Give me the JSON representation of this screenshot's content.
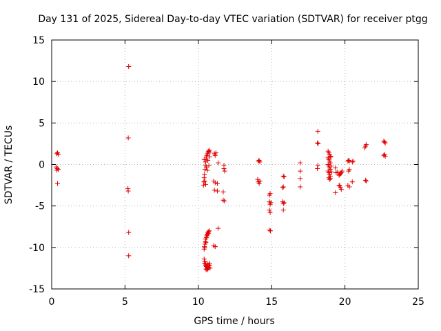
{
  "chart_data": {
    "type": "scatter",
    "title": "Day 131 of 2025, Sidereal Day-to-day VTEC variation (SDTVAR) for receiver ptgg",
    "xlabel": "GPS time / hours",
    "ylabel": "SDTVAR / TECUs",
    "xlim": [
      0,
      25
    ],
    "ylim": [
      -15,
      15
    ],
    "xticks": [
      0,
      5,
      10,
      15,
      20,
      25
    ],
    "yticks": [
      -15,
      -10,
      -5,
      0,
      5,
      10,
      15
    ],
    "xtick_labels": [
      "0",
      "5",
      "10",
      "15",
      "20",
      "25"
    ],
    "ytick_labels": [
      "-15",
      "-10",
      "-5",
      "0",
      "5",
      "10",
      "15"
    ],
    "grid": true,
    "marker": "+",
    "color": "#e00000",
    "series": [
      {
        "name": "SDTVAR",
        "points": [
          [
            0.35,
            1.3
          ],
          [
            0.4,
            1.4
          ],
          [
            0.45,
            1.2
          ],
          [
            0.3,
            -0.3
          ],
          [
            0.38,
            -0.5
          ],
          [
            0.45,
            -0.6
          ],
          [
            0.35,
            -0.7
          ],
          [
            0.4,
            -2.3
          ],
          [
            5.25,
            11.8
          ],
          [
            5.22,
            3.2
          ],
          [
            5.2,
            -2.9
          ],
          [
            5.22,
            -3.2
          ],
          [
            5.25,
            -8.2
          ],
          [
            5.25,
            -11.0
          ],
          [
            10.35,
            -2.5
          ],
          [
            10.38,
            -2.1
          ],
          [
            10.4,
            -1.6
          ],
          [
            10.42,
            -1.2
          ],
          [
            10.45,
            -0.6
          ],
          [
            10.48,
            -0.1
          ],
          [
            10.5,
            0.3
          ],
          [
            10.52,
            0.6
          ],
          [
            10.55,
            0.9
          ],
          [
            10.58,
            1.1
          ],
          [
            10.62,
            1.3
          ],
          [
            10.66,
            1.5
          ],
          [
            10.7,
            1.6
          ],
          [
            10.75,
            1.7
          ],
          [
            10.8,
            1.5
          ],
          [
            10.55,
            -0.3
          ],
          [
            10.65,
            0.5
          ],
          [
            10.72,
            -0.1
          ],
          [
            10.4,
            0.6
          ],
          [
            10.45,
            -2.0
          ],
          [
            10.5,
            -2.4
          ],
          [
            10.62,
            -0.7
          ],
          [
            10.78,
            0.9
          ],
          [
            10.4,
            -10.2
          ],
          [
            10.42,
            -9.9
          ],
          [
            10.45,
            -9.6
          ],
          [
            10.48,
            -9.3
          ],
          [
            10.5,
            -9.0
          ],
          [
            10.55,
            -8.8
          ],
          [
            10.58,
            -8.6
          ],
          [
            10.6,
            -8.4
          ],
          [
            10.65,
            -8.2
          ],
          [
            10.7,
            -8.1
          ],
          [
            10.75,
            -8.0
          ],
          [
            10.44,
            -10.0
          ],
          [
            10.52,
            -9.4
          ],
          [
            10.62,
            -8.5
          ],
          [
            10.68,
            -8.3
          ],
          [
            10.4,
            -11.4
          ],
          [
            10.45,
            -11.7
          ],
          [
            10.5,
            -12.0
          ],
          [
            10.55,
            -12.3
          ],
          [
            10.6,
            -12.5
          ],
          [
            10.65,
            -12.6
          ],
          [
            10.7,
            -12.4
          ],
          [
            10.75,
            -12.2
          ],
          [
            10.8,
            -12.5
          ],
          [
            10.42,
            -11.9
          ],
          [
            10.48,
            -12.2
          ],
          [
            10.58,
            -12.7
          ],
          [
            10.72,
            -12.1
          ],
          [
            10.78,
            -11.9
          ],
          [
            10.52,
            -12.6
          ],
          [
            10.62,
            -12.0
          ],
          [
            11.1,
            1.3
          ],
          [
            11.15,
            1.1
          ],
          [
            11.2,
            1.4
          ],
          [
            11.05,
            -2.0
          ],
          [
            11.15,
            -2.2
          ],
          [
            11.1,
            -3.1
          ],
          [
            11.3,
            -3.2
          ],
          [
            11.3,
            -2.3
          ],
          [
            11.35,
            0.2
          ],
          [
            11.35,
            -7.7
          ],
          [
            11.05,
            -9.8
          ],
          [
            11.15,
            -9.9
          ],
          [
            11.75,
            -0.1
          ],
          [
            11.75,
            -0.5
          ],
          [
            11.8,
            -0.8
          ],
          [
            11.7,
            -3.3
          ],
          [
            11.7,
            -4.3
          ],
          [
            11.78,
            -4.4
          ],
          [
            14.1,
            0.4
          ],
          [
            14.15,
            0.5
          ],
          [
            14.2,
            0.3
          ],
          [
            14.05,
            -1.8
          ],
          [
            14.1,
            -2.1
          ],
          [
            14.15,
            -2.3
          ],
          [
            14.2,
            -2.0
          ],
          [
            14.85,
            -3.7
          ],
          [
            14.9,
            -3.5
          ],
          [
            14.85,
            -4.5
          ],
          [
            14.9,
            -4.8
          ],
          [
            14.95,
            -4.6
          ],
          [
            14.85,
            -5.5
          ],
          [
            14.9,
            -5.8
          ],
          [
            14.85,
            -7.9
          ],
          [
            14.92,
            -8.0
          ],
          [
            15.8,
            -1.4
          ],
          [
            15.85,
            -1.5
          ],
          [
            15.75,
            -2.8
          ],
          [
            15.8,
            -2.7
          ],
          [
            15.75,
            -4.5
          ],
          [
            15.8,
            -4.7
          ],
          [
            15.85,
            -4.6
          ],
          [
            15.8,
            -5.5
          ],
          [
            16.95,
            0.2
          ],
          [
            16.95,
            -0.8
          ],
          [
            16.95,
            -1.7
          ],
          [
            16.95,
            -2.7
          ],
          [
            18.15,
            4.0
          ],
          [
            18.12,
            2.6
          ],
          [
            18.18,
            2.5
          ],
          [
            18.15,
            -0.1
          ],
          [
            18.12,
            -0.5
          ],
          [
            18.85,
            1.6
          ],
          [
            18.9,
            1.4
          ],
          [
            18.95,
            1.2
          ],
          [
            19.0,
            1.0
          ],
          [
            18.85,
            0.8
          ],
          [
            18.9,
            0.6
          ],
          [
            18.95,
            0.4
          ],
          [
            19.0,
            0.2
          ],
          [
            18.85,
            0.0
          ],
          [
            18.9,
            -0.2
          ],
          [
            18.95,
            -0.4
          ],
          [
            19.0,
            -0.6
          ],
          [
            18.85,
            -0.8
          ],
          [
            18.9,
            -1.0
          ],
          [
            18.95,
            -1.2
          ],
          [
            19.0,
            -1.4
          ],
          [
            18.9,
            -1.6
          ],
          [
            18.95,
            -1.8
          ],
          [
            19.05,
            0.9
          ],
          [
            19.05,
            -0.2
          ],
          [
            19.1,
            -0.9
          ],
          [
            19.0,
            -1.7
          ],
          [
            19.35,
            -0.4
          ],
          [
            19.4,
            -1.0
          ],
          [
            19.35,
            -3.4
          ],
          [
            19.5,
            -0.9
          ],
          [
            19.6,
            -1.3
          ],
          [
            19.65,
            -1.2
          ],
          [
            19.7,
            -1.1
          ],
          [
            19.75,
            -1.0
          ],
          [
            19.8,
            -0.8
          ],
          [
            19.6,
            -2.5
          ],
          [
            19.65,
            -2.6
          ],
          [
            19.7,
            -2.8
          ],
          [
            19.75,
            -3.0
          ],
          [
            20.2,
            0.4
          ],
          [
            20.25,
            0.5
          ],
          [
            20.3,
            0.4
          ],
          [
            20.5,
            0.3
          ],
          [
            20.55,
            0.4
          ],
          [
            20.25,
            -0.8
          ],
          [
            20.3,
            -0.6
          ],
          [
            20.2,
            -2.5
          ],
          [
            20.3,
            -2.7
          ],
          [
            20.5,
            -2.1
          ],
          [
            21.35,
            2.0
          ],
          [
            21.4,
            2.2
          ],
          [
            21.45,
            2.4
          ],
          [
            21.4,
            -1.9
          ],
          [
            21.45,
            -2.0
          ],
          [
            22.65,
            2.8
          ],
          [
            22.7,
            2.7
          ],
          [
            22.75,
            2.6
          ],
          [
            22.65,
            1.1
          ],
          [
            22.7,
            1.2
          ],
          [
            22.75,
            1.0
          ]
        ]
      }
    ]
  }
}
